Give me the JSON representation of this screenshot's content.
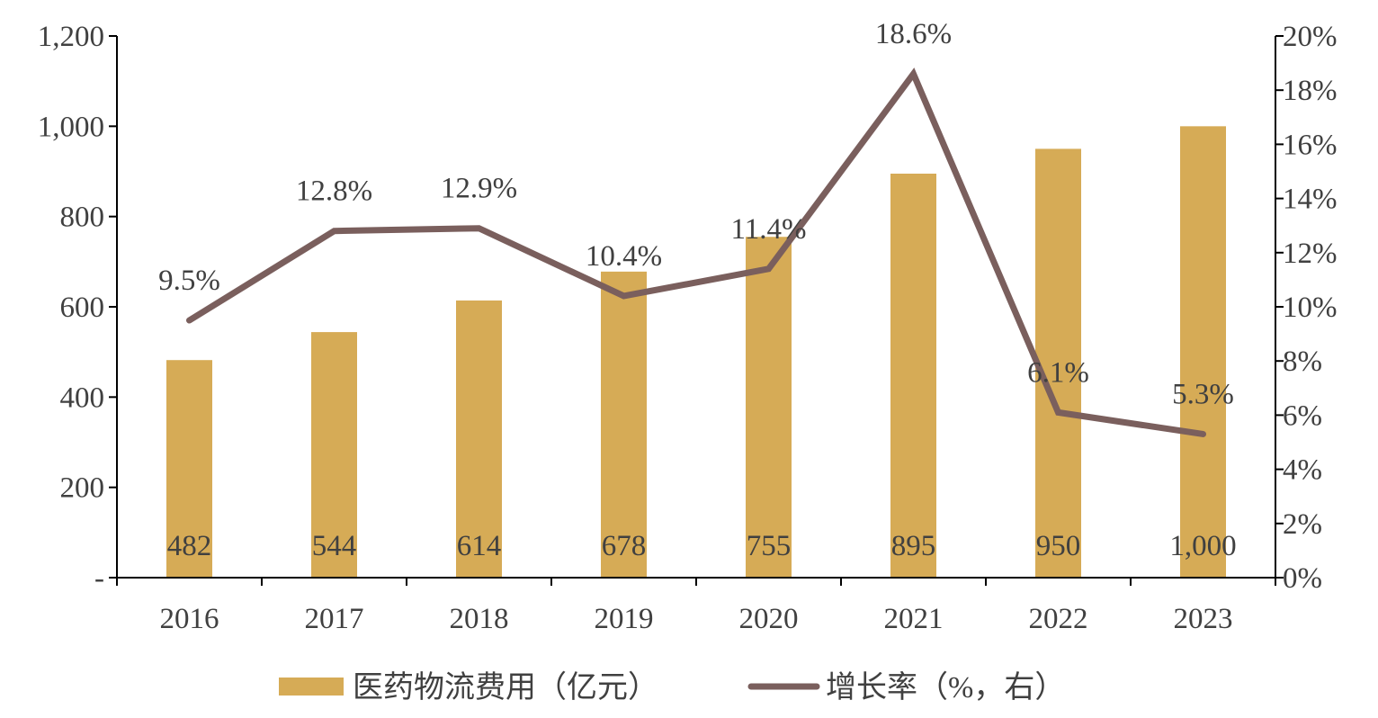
{
  "chart_data": {
    "type": "bar",
    "categories": [
      "2016",
      "2017",
      "2018",
      "2019",
      "2020",
      "2021",
      "2022",
      "2023"
    ],
    "series": [
      {
        "name": "医药物流费用（亿元）",
        "type": "bar",
        "axis": "left",
        "color": "#D6AB56",
        "values": [
          482,
          544,
          614,
          678,
          755,
          895,
          950,
          1000
        ],
        "labels": [
          "482",
          "544",
          "614",
          "678",
          "755",
          "895",
          "950",
          "1,000"
        ]
      },
      {
        "name": "增长率（%，右）",
        "type": "line",
        "axis": "right",
        "color": "#7A5F5D",
        "values": [
          9.5,
          12.8,
          12.9,
          10.4,
          11.4,
          18.6,
          6.1,
          5.3
        ],
        "labels": [
          "9.5%",
          "12.8%",
          "12.9%",
          "10.4%",
          "11.4%",
          "18.6%",
          "6.1%",
          "5.3%"
        ]
      }
    ],
    "y_left": {
      "ylim": [
        0,
        1200
      ],
      "ticks": [
        0,
        200,
        400,
        600,
        800,
        1000,
        1200
      ],
      "tick_labels": [
        "-",
        "200",
        "400",
        "600",
        "800",
        "1,000",
        "1,200"
      ]
    },
    "y_right": {
      "ylim": [
        0,
        20
      ],
      "ticks": [
        0,
        2,
        4,
        6,
        8,
        10,
        12,
        14,
        16,
        18,
        20
      ],
      "tick_labels": [
        "0%",
        "2%",
        "4%",
        "6%",
        "8%",
        "10%",
        "12%",
        "14%",
        "16%",
        "18%",
        "20%"
      ]
    },
    "grid": false,
    "legend_position": "bottom",
    "axis_color": "#000000"
  }
}
